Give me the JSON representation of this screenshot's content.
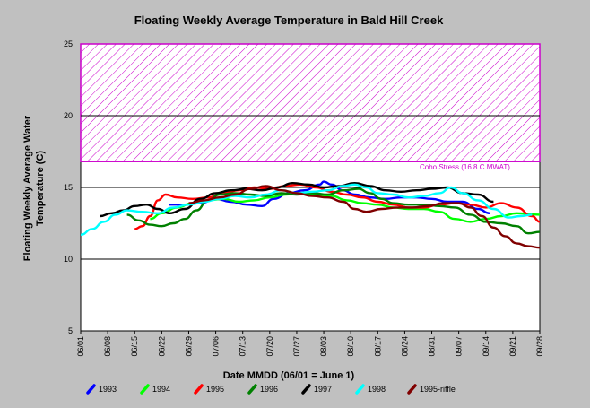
{
  "chart_data": {
    "type": "line",
    "title": "Floating Weekly Average Temperature in Bald Hill Creek",
    "xlabel": "Date MMDD (06/01 = June 1)",
    "ylabel_line1": "Floating Weekly Average Water",
    "ylabel_line2": "Temperature (C)",
    "ylim": [
      5,
      25
    ],
    "yticks": [
      "5",
      "10",
      "15",
      "20",
      "25"
    ],
    "xticks": [
      "06/01",
      "06/08",
      "06/15",
      "06/22",
      "06/29",
      "07/06",
      "07/13",
      "07/20",
      "07/27",
      "08/03",
      "08/10",
      "08/17",
      "08/24",
      "08/31",
      "09/07",
      "09/14",
      "09/21",
      "09/28"
    ],
    "grid": "horizontal",
    "stress_band": {
      "label": "Coho Stress (16.8 C MWAT)",
      "from": 16.8,
      "to": 25,
      "color": "#cc00cc"
    },
    "legend_position": "bottom",
    "series": [
      {
        "name": "1993",
        "color": "#0000ff",
        "points": [
          [
            23,
            13.8
          ],
          [
            27,
            13.8
          ],
          [
            31,
            13.9
          ],
          [
            35,
            14.2
          ],
          [
            39,
            14.0
          ],
          [
            43,
            13.8
          ],
          [
            47,
            13.7
          ],
          [
            50,
            14.2
          ],
          [
            54,
            14.6
          ],
          [
            58,
            14.8
          ],
          [
            62,
            15.2
          ],
          [
            63,
            15.4
          ],
          [
            65,
            15.2
          ],
          [
            68,
            14.8
          ],
          [
            71,
            14.5
          ],
          [
            75,
            14.3
          ],
          [
            79,
            14.2
          ],
          [
            83,
            14.3
          ],
          [
            87,
            14.3
          ],
          [
            91,
            14.2
          ],
          [
            95,
            14.0
          ],
          [
            99,
            14.0
          ],
          [
            103,
            13.5
          ],
          [
            106,
            13.2
          ]
        ]
      },
      {
        "name": "1994",
        "color": "#00ff00",
        "points": [
          [
            18,
            12.8
          ],
          [
            21,
            13.2
          ],
          [
            25,
            13.6
          ],
          [
            29,
            13.9
          ],
          [
            33,
            14.1
          ],
          [
            37,
            14.2
          ],
          [
            41,
            14.0
          ],
          [
            45,
            14.1
          ],
          [
            49,
            14.3
          ],
          [
            53,
            14.5
          ],
          [
            57,
            14.6
          ],
          [
            61,
            14.5
          ],
          [
            65,
            14.4
          ],
          [
            69,
            14.1
          ],
          [
            73,
            13.9
          ],
          [
            77,
            13.8
          ],
          [
            81,
            13.6
          ],
          [
            85,
            13.5
          ],
          [
            89,
            13.5
          ],
          [
            93,
            13.3
          ],
          [
            97,
            12.8
          ],
          [
            101,
            12.6
          ],
          [
            105,
            12.8
          ],
          [
            109,
            13.0
          ],
          [
            113,
            13.2
          ],
          [
            119,
            13.1
          ]
        ]
      },
      {
        "name": "1995",
        "color": "#ff0000",
        "points": [
          [
            14,
            12.1
          ],
          [
            16,
            12.3
          ],
          [
            18,
            13.0
          ],
          [
            20,
            14.1
          ],
          [
            22,
            14.5
          ],
          [
            25,
            14.3
          ],
          [
            29,
            14.2
          ],
          [
            33,
            14.3
          ],
          [
            37,
            14.6
          ],
          [
            41,
            14.8
          ],
          [
            45,
            15.0
          ],
          [
            49,
            14.9
          ],
          [
            53,
            15.1
          ],
          [
            57,
            15.2
          ],
          [
            61,
            15.0
          ],
          [
            65,
            14.7
          ],
          [
            69,
            14.5
          ],
          [
            73,
            14.3
          ],
          [
            77,
            14.0
          ],
          [
            81,
            13.8
          ],
          [
            85,
            13.6
          ],
          [
            89,
            13.6
          ],
          [
            93,
            13.8
          ],
          [
            97,
            13.9
          ],
          [
            101,
            13.8
          ],
          [
            105,
            13.6
          ],
          [
            109,
            13.9
          ],
          [
            113,
            13.6
          ],
          [
            117,
            13.0
          ],
          [
            119,
            12.6
          ]
        ]
      },
      {
        "name": "1996",
        "color": "#008000",
        "points": [
          [
            12,
            13.1
          ],
          [
            15,
            12.7
          ],
          [
            18,
            12.4
          ],
          [
            21,
            12.3
          ],
          [
            24,
            12.5
          ],
          [
            27,
            12.8
          ],
          [
            30,
            13.4
          ],
          [
            33,
            14.1
          ],
          [
            36,
            14.5
          ],
          [
            40,
            14.6
          ],
          [
            44,
            14.5
          ],
          [
            48,
            14.4
          ],
          [
            52,
            14.6
          ],
          [
            56,
            14.5
          ],
          [
            60,
            14.6
          ],
          [
            64,
            14.5
          ],
          [
            68,
            14.8
          ],
          [
            72,
            14.9
          ],
          [
            75,
            14.6
          ],
          [
            78,
            14.2
          ],
          [
            81,
            13.9
          ],
          [
            85,
            13.8
          ],
          [
            89,
            13.8
          ],
          [
            93,
            13.7
          ],
          [
            97,
            13.6
          ],
          [
            101,
            13.1
          ],
          [
            105,
            12.6
          ],
          [
            109,
            12.5
          ],
          [
            113,
            12.3
          ],
          [
            116,
            11.8
          ],
          [
            119,
            11.9
          ]
        ]
      },
      {
        "name": "1997",
        "color": "#000000",
        "points": [
          [
            5,
            13.0
          ],
          [
            8,
            13.2
          ],
          [
            11,
            13.4
          ],
          [
            14,
            13.7
          ],
          [
            17,
            13.8
          ],
          [
            20,
            13.5
          ],
          [
            23,
            13.2
          ],
          [
            27,
            13.5
          ],
          [
            31,
            14.2
          ],
          [
            35,
            14.6
          ],
          [
            39,
            14.8
          ],
          [
            43,
            14.9
          ],
          [
            47,
            14.8
          ],
          [
            51,
            15.0
          ],
          [
            55,
            15.3
          ],
          [
            59,
            15.2
          ],
          [
            63,
            15.0
          ],
          [
            67,
            15.1
          ],
          [
            71,
            15.3
          ],
          [
            75,
            15.1
          ],
          [
            79,
            14.8
          ],
          [
            83,
            14.7
          ],
          [
            87,
            14.8
          ],
          [
            91,
            14.9
          ],
          [
            95,
            15.0
          ],
          [
            99,
            14.6
          ],
          [
            103,
            14.5
          ],
          [
            107,
            14.0
          ]
        ]
      },
      {
        "name": "1998",
        "color": "#00ffff",
        "points": [
          [
            0,
            11.7
          ],
          [
            3,
            12.1
          ],
          [
            6,
            12.6
          ],
          [
            9,
            13.1
          ],
          [
            12,
            13.4
          ],
          [
            16,
            13.3
          ],
          [
            20,
            13.2
          ],
          [
            24,
            13.6
          ],
          [
            28,
            13.8
          ],
          [
            32,
            14.0
          ],
          [
            36,
            14.2
          ],
          [
            40,
            14.4
          ],
          [
            44,
            14.3
          ],
          [
            48,
            14.5
          ],
          [
            52,
            14.8
          ],
          [
            56,
            14.6
          ],
          [
            60,
            14.7
          ],
          [
            64,
            14.8
          ],
          [
            68,
            15.1
          ],
          [
            71,
            15.2
          ],
          [
            74,
            15.0
          ],
          [
            77,
            14.6
          ],
          [
            81,
            14.5
          ],
          [
            85,
            14.3
          ],
          [
            89,
            14.4
          ],
          [
            93,
            14.6
          ],
          [
            96,
            15.0
          ],
          [
            99,
            14.6
          ],
          [
            103,
            14.1
          ],
          [
            107,
            13.5
          ],
          [
            111,
            12.9
          ],
          [
            114,
            13.0
          ],
          [
            117,
            13.1
          ]
        ]
      },
      {
        "name": "1995-riffle",
        "color": "#800000",
        "points": [
          [
            28,
            13.9
          ],
          [
            32,
            14.1
          ],
          [
            36,
            14.3
          ],
          [
            40,
            14.5
          ],
          [
            44,
            14.9
          ],
          [
            48,
            15.1
          ],
          [
            52,
            14.8
          ],
          [
            56,
            14.6
          ],
          [
            60,
            14.4
          ],
          [
            64,
            14.3
          ],
          [
            68,
            14.0
          ],
          [
            71,
            13.5
          ],
          [
            74,
            13.3
          ],
          [
            78,
            13.5
          ],
          [
            82,
            13.6
          ],
          [
            86,
            13.6
          ],
          [
            90,
            13.7
          ],
          [
            94,
            13.9
          ],
          [
            98,
            13.9
          ],
          [
            101,
            13.6
          ],
          [
            104,
            13.0
          ],
          [
            107,
            12.2
          ],
          [
            110,
            11.6
          ],
          [
            113,
            11.1
          ],
          [
            116,
            10.9
          ],
          [
            119,
            10.8
          ]
        ]
      }
    ]
  }
}
